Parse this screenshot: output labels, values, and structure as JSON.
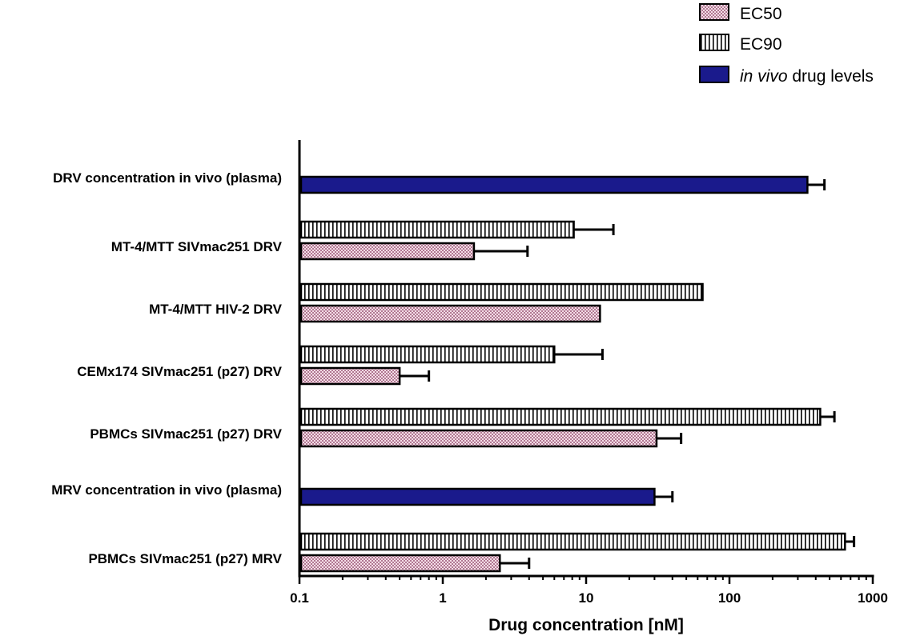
{
  "chart_data": {
    "type": "bar",
    "orientation": "horizontal",
    "xscale": "log",
    "xlim": [
      0.1,
      1000
    ],
    "xticks": [
      "0.1",
      "1",
      "10",
      "100",
      "1000"
    ],
    "xlabel": "Drug concentration [nM]",
    "legend": {
      "placement": "top-right",
      "entries": [
        {
          "key": "ec50",
          "label": "EC50",
          "pattern": "checker-pink"
        },
        {
          "key": "ec90",
          "label": "EC90",
          "pattern": "vertical-stripes"
        },
        {
          "key": "invivo",
          "label_italic": "in vivo",
          "label_rest": " drug levels",
          "color": "#1a1a8c"
        }
      ]
    },
    "categories": [
      {
        "label": "DRV concentration in vivo (plasma)",
        "bars": [
          {
            "series": "invivo",
            "value": 350,
            "error": 460
          }
        ]
      },
      {
        "label": "MT-4/MTT SIVmac251 DRV",
        "bars": [
          {
            "series": "ec90",
            "value": 8.2,
            "error": 15.5
          },
          {
            "series": "ec50",
            "value": 1.65,
            "error": 3.9
          }
        ]
      },
      {
        "label": "MT-4/MTT HIV-2 DRV",
        "bars": [
          {
            "series": "ec90",
            "value": 65
          },
          {
            "series": "ec50",
            "value": 12.5
          }
        ]
      },
      {
        "label": "CEMx174 SIVmac251 (p27) DRV",
        "bars": [
          {
            "series": "ec90",
            "value": 6.0,
            "error": 13.0
          },
          {
            "series": "ec50",
            "value": 0.5,
            "error": 0.8
          }
        ]
      },
      {
        "label": "PBMCs SIVmac251 (p27) DRV",
        "bars": [
          {
            "series": "ec90",
            "value": 430,
            "error": 540
          },
          {
            "series": "ec50",
            "value": 31,
            "error": 46
          }
        ]
      },
      {
        "label": "MRV concentration in vivo (plasma)",
        "bars": [
          {
            "series": "invivo",
            "value": 30,
            "error": 40
          }
        ]
      },
      {
        "label": "PBMCs SIVmac251 (p27) MRV",
        "bars": [
          {
            "series": "ec90",
            "value": 640,
            "error": 740
          },
          {
            "series": "ec50",
            "value": 2.5,
            "error": 4.0
          }
        ]
      }
    ]
  }
}
